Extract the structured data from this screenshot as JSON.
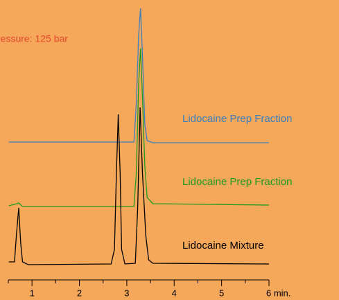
{
  "chart_data": {
    "type": "line",
    "annotation": "ressure: 125 bar",
    "annotation_color": "#e8462a",
    "background": "#f5a85a",
    "xlim": [
      0.5,
      6
    ],
    "xticks": [
      1,
      2,
      3,
      4,
      5,
      {
        "value": 6,
        "label": "6 min."
      }
    ],
    "minor_xticks": [
      0.5,
      1.5,
      2.5,
      3.5,
      4.5,
      5.5
    ],
    "ylim": [
      0,
      433
    ],
    "series": [
      {
        "name": "Lidocaine Prep Fraction",
        "color": "#3a7fc1",
        "x": [
          0.51,
          3.15,
          3.2,
          3.25,
          3.29,
          3.33,
          3.38,
          3.43,
          3.55,
          6
        ],
        "values": [
          228,
          228,
          283,
          383,
          421,
          353,
          253,
          230,
          227,
          227
        ]
      },
      {
        "name": "Lidocaine Prep Fraction",
        "color": "#1f9a1f",
        "x": [
          0.51,
          0.63,
          0.72,
          0.8,
          0.92,
          3.15,
          3.2,
          3.25,
          3.29,
          3.33,
          3.38,
          3.43,
          3.55,
          6
        ],
        "values": [
          136,
          138,
          140,
          135,
          135,
          135,
          183,
          313,
          363,
          293,
          193,
          148,
          139,
          137
        ]
      },
      {
        "name": "Lidocaine Mixture",
        "color": "#000000",
        "x": [
          0.51,
          0.63,
          0.67,
          0.72,
          0.76,
          0.8,
          0.92,
          2.67,
          2.74,
          2.78,
          2.82,
          2.86,
          2.89,
          2.96,
          3.18,
          3.23,
          3.28,
          3.33,
          3.4,
          3.46,
          3.55,
          6
        ],
        "values": [
          55,
          55,
          93,
          133,
          83,
          55,
          51,
          52,
          73,
          183,
          268,
          183,
          73,
          52,
          53,
          133,
          278,
          183,
          93,
          58,
          53,
          52
        ]
      }
    ]
  }
}
